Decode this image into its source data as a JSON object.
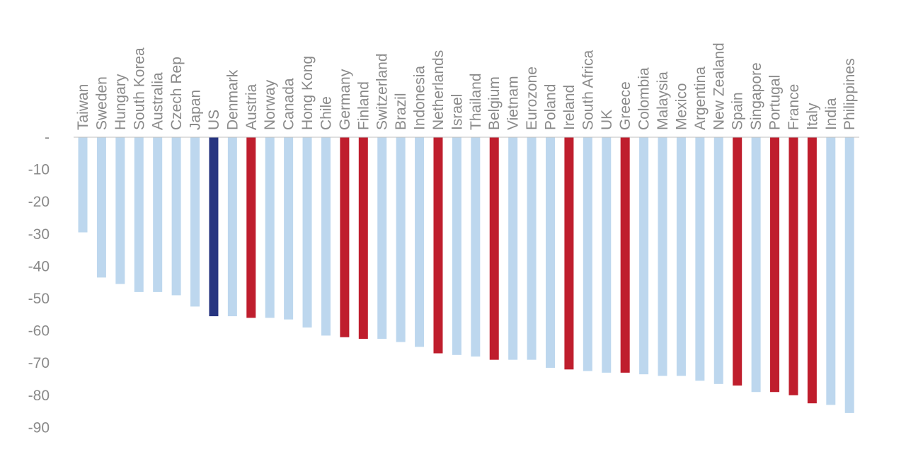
{
  "chart_data": {
    "type": "bar",
    "categories": [
      "Taiwan",
      "Sweden",
      "Hungary",
      "South Korea",
      "Australia",
      "Czech Rep",
      "Japan",
      "US",
      "Denmark",
      "Austria",
      "Norway",
      "Canada",
      "Hong Kong",
      "Chile",
      "Germany",
      "Finland",
      "Switzerland",
      "Brazil",
      "Indonesia",
      "Netherlands",
      "Israel",
      "Thailand",
      "Belgium",
      "Vietnam",
      "Eurozone",
      "Poland",
      "Ireland",
      "South Africa",
      "UK",
      "Greece",
      "Colombia",
      "Malaysia",
      "Mexico",
      "Argentina",
      "New Zealand",
      "Spain",
      "Singapore",
      "Portugal",
      "France",
      "Italy",
      "India",
      "Philippines"
    ],
    "values": [
      -29.5,
      -43.5,
      -45.5,
      -48,
      -48,
      -49,
      -52.5,
      -55.5,
      -55.5,
      -56,
      -56,
      -56.5,
      -59,
      -61.5,
      -62,
      -62.5,
      -62.5,
      -63.5,
      -65,
      -67,
      -67.5,
      -68,
      -69,
      -69,
      -69,
      -71.5,
      -72,
      -72.5,
      -73,
      -73,
      -73.5,
      -74,
      -74,
      -75.5,
      -76.5,
      -77,
      -79,
      -79,
      -80,
      -82.5,
      -83,
      -85.5
    ],
    "highlight": [
      "light",
      "light",
      "light",
      "light",
      "light",
      "light",
      "light",
      "us",
      "light",
      "red",
      "light",
      "light",
      "light",
      "light",
      "red",
      "red",
      "light",
      "light",
      "light",
      "red",
      "light",
      "light",
      "red",
      "light",
      "light",
      "light",
      "red",
      "light",
      "light",
      "red",
      "light",
      "light",
      "light",
      "light",
      "light",
      "red",
      "light",
      "red",
      "red",
      "red",
      "light",
      "light"
    ],
    "colors": {
      "light": "#bdd7ee",
      "us": "#273580",
      "red": "#bf1e2d"
    },
    "yticks": [
      0,
      -10,
      -20,
      -30,
      -40,
      -50,
      -60,
      -70,
      -80,
      -90
    ],
    "ytick_labels": [
      "-",
      "-10",
      "-20",
      "-30",
      "-40",
      "-50",
      "-60",
      "-70",
      "-80",
      "-90"
    ],
    "ylim": [
      -90,
      0
    ],
    "title": "",
    "xlabel": "",
    "ylabel": "",
    "grid": false,
    "legend": "none"
  }
}
